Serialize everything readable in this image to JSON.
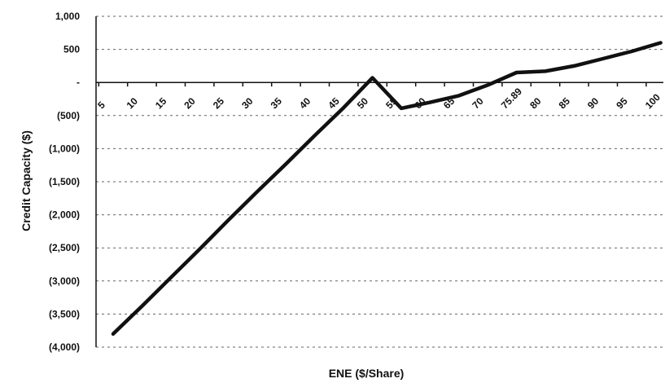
{
  "chart_data": {
    "type": "line",
    "xlabel": "ENE ($/Share)",
    "ylabel": "Credit Capacity ($)",
    "categories": [
      "5",
      "10",
      "15",
      "20",
      "25",
      "30",
      "35",
      "40",
      "45",
      "50",
      "55",
      "60",
      "65",
      "70",
      "75.89",
      "80",
      "85",
      "90",
      "95",
      "100"
    ],
    "tick_labels_x": [
      "5",
      "10",
      "15",
      "20",
      "25",
      "30",
      "35",
      "40",
      "45",
      "50",
      "55",
      "60",
      "65",
      "70",
      "75.89",
      "80",
      "85",
      "90",
      "95",
      "100"
    ],
    "y_tick_labels": [
      "1,000",
      "500",
      "-",
      "(500)",
      "(1,000)",
      "(1,500)",
      "(2,000)",
      "(2,500)",
      "(3,000)",
      "(3,500)",
      "(4,000)"
    ],
    "y_ticks": [
      1000,
      500,
      0,
      -500,
      -1000,
      -1500,
      -2000,
      -2500,
      -3000,
      -3500,
      -4000
    ],
    "ylim": [
      -4000,
      1000
    ],
    "grid": true,
    "series": [
      {
        "values": [
          -3800,
          -3380,
          -2950,
          -2520,
          -2080,
          -1650,
          -1230,
          -800,
          -380,
          70,
          -390,
          -300,
          -200,
          -40,
          150,
          170,
          250,
          360,
          470,
          600
        ],
        "color": "#111111"
      }
    ]
  }
}
